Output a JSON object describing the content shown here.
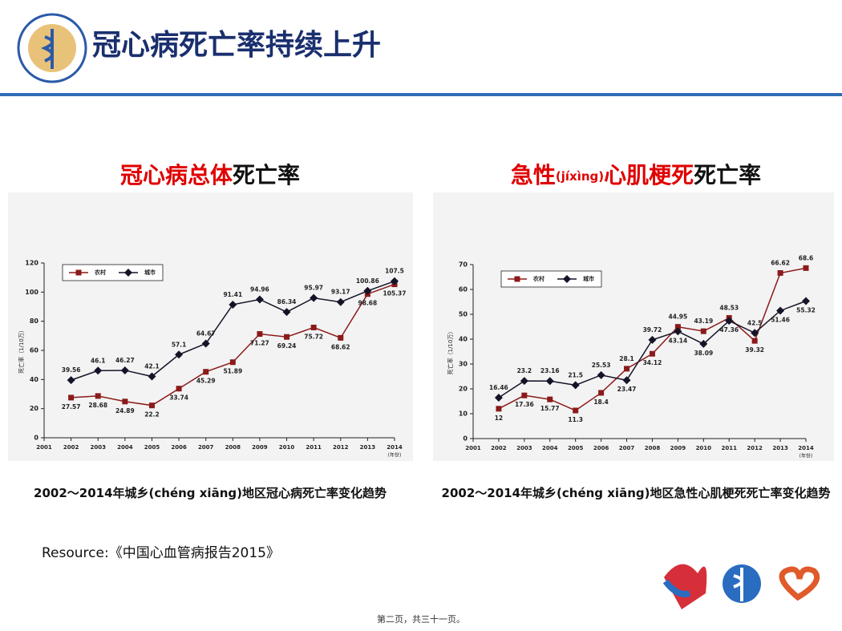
{
  "header": {
    "title": "冠心病死亡率持续上升"
  },
  "chart_data": [
    {
      "type": "line",
      "title_parts": [
        {
          "text": "冠心病总体",
          "color": "#e00000"
        },
        {
          "text": "死亡率",
          "color": "#111111"
        }
      ],
      "ylabel": "死亡率（1/10万）",
      "xlabel": "(年份)",
      "x": [
        2002,
        2003,
        2004,
        2005,
        2006,
        2007,
        2008,
        2009,
        2010,
        2011,
        2012,
        2013,
        2014
      ],
      "xlim": [
        2001,
        2014
      ],
      "xticks": [
        2001,
        2002,
        2003,
        2004,
        2005,
        2006,
        2007,
        2008,
        2009,
        2010,
        2011,
        2012,
        2013,
        2014
      ],
      "ylim": [
        0,
        120
      ],
      "yticks": [
        0,
        20,
        40,
        60,
        80,
        100,
        120
      ],
      "series": [
        {
          "name": "农村",
          "color": "#8b1a1a",
          "marker": "square",
          "values": [
            27.57,
            28.68,
            24.89,
            22.2,
            33.74,
            45.29,
            51.89,
            71.27,
            69.24,
            75.72,
            68.62,
            98.68,
            105.37
          ]
        },
        {
          "name": "城市",
          "color": "#141428",
          "marker": "diamond",
          "values": [
            39.56,
            46.1,
            46.27,
            42.1,
            57.1,
            64.67,
            91.41,
            94.96,
            86.34,
            95.97,
            93.17,
            100.86,
            107.5
          ]
        }
      ],
      "caption": "2002～2014年城乡(chéng xiāng)地区冠心病死亡率变化趋势"
    },
    {
      "type": "line",
      "title_parts": [
        {
          "text": "急性",
          "color": "#e00000"
        },
        {
          "text": "(jíxìng)",
          "color": "#e00000",
          "small": true
        },
        {
          "text": "心肌梗死",
          "color": "#e00000"
        },
        {
          "text": "死亡率",
          "color": "#111111"
        }
      ],
      "ylabel": "死亡率（1/10万）",
      "xlabel": "(年份)",
      "x": [
        2002,
        2003,
        2004,
        2005,
        2006,
        2007,
        2008,
        2009,
        2010,
        2011,
        2012,
        2013,
        2014
      ],
      "xlim": [
        2001,
        2014
      ],
      "xticks": [
        2001,
        2002,
        2003,
        2004,
        2005,
        2006,
        2007,
        2008,
        2009,
        2010,
        2011,
        2012,
        2013,
        2014
      ],
      "ylim": [
        0,
        70
      ],
      "yticks": [
        0,
        10,
        20,
        30,
        40,
        50,
        60,
        70
      ],
      "series": [
        {
          "name": "农村",
          "color": "#8b1a1a",
          "marker": "square",
          "values": [
            12,
            17.36,
            15.77,
            11.3,
            18.4,
            28.1,
            34.12,
            44.95,
            43.19,
            48.53,
            39.32,
            66.62,
            68.6
          ]
        },
        {
          "name": "城市",
          "color": "#141428",
          "marker": "diamond",
          "values": [
            16.46,
            23.2,
            23.16,
            21.5,
            25.53,
            23.47,
            39.72,
            43.14,
            38.09,
            47.36,
            42.5,
            51.46,
            55.32
          ]
        }
      ],
      "caption": "2002～2014年城乡(chéng xiāng)地区急性心肌梗死死亡率变化趋势"
    }
  ],
  "resource": "Resource:《中国心血管病报告2015》",
  "footer": "第二页，共三十一页。"
}
